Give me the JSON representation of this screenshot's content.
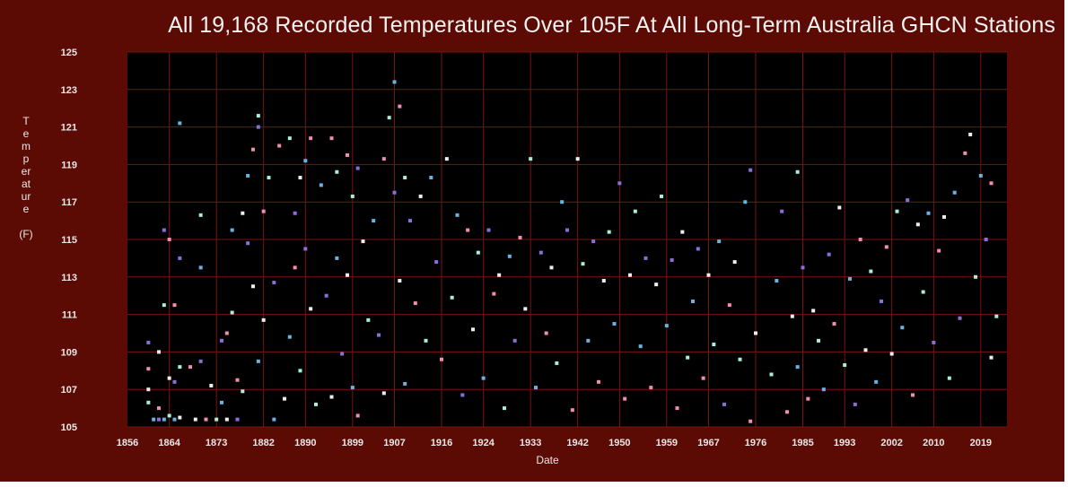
{
  "chart_data": {
    "type": "scatter",
    "title": "All 19,168 Recorded Temperatures Over 105F At All Long-Term Australia GHCN Stations",
    "xlabel": "Date",
    "ylabel": "Temperature",
    "ylabel_unit": "(F)",
    "xlim": [
      1856,
      2024
    ],
    "ylim": [
      105,
      125
    ],
    "x_ticks": [
      "1856",
      "1864",
      "1873",
      "1882",
      "1890",
      "1899",
      "1907",
      "1916",
      "1924",
      "1933",
      "1942",
      "1950",
      "1959",
      "1967",
      "1976",
      "1985",
      "1993",
      "2002",
      "2010",
      "2019"
    ],
    "x_tick_values": [
      1856,
      1864,
      1873,
      1882,
      1890,
      1899,
      1907,
      1916,
      1924,
      1933,
      1942,
      1950,
      1959,
      1967,
      1976,
      1985,
      1993,
      2002,
      2010,
      2019
    ],
    "y_ticks": [
      105,
      107,
      109,
      111,
      113,
      115,
      117,
      119,
      121,
      123,
      125
    ],
    "grid": true,
    "point_colors": [
      "#8c6ed8",
      "#f28cb4",
      "#eeeeee",
      "#a8f0d8",
      "#6bb2e0"
    ],
    "series": [
      {
        "values": [
          [
            1860,
            109.5
          ],
          [
            1860,
            108.1
          ],
          [
            1860,
            107.0
          ],
          [
            1860,
            106.3
          ],
          [
            1861,
            105.4
          ],
          [
            1862,
            105.4
          ],
          [
            1862,
            106.0
          ],
          [
            1862,
            109.0
          ],
          [
            1863,
            111.5
          ],
          [
            1863,
            105.4
          ],
          [
            1863,
            115.5
          ],
          [
            1864,
            115.0
          ],
          [
            1864,
            107.6
          ],
          [
            1864,
            105.6
          ],
          [
            1865,
            105.4
          ],
          [
            1865,
            107.4
          ],
          [
            1865,
            111.5
          ],
          [
            1866,
            105.5
          ],
          [
            1866,
            108.2
          ],
          [
            1866,
            121.2
          ],
          [
            1866,
            114.0
          ],
          [
            1868,
            108.2
          ],
          [
            1869,
            105.4
          ],
          [
            1870,
            116.3
          ],
          [
            1870,
            113.5
          ],
          [
            1870,
            108.5
          ],
          [
            1871,
            105.4
          ],
          [
            1872,
            107.2
          ],
          [
            1873,
            105.4
          ],
          [
            1874,
            106.3
          ],
          [
            1874,
            109.6
          ],
          [
            1875,
            110.0
          ],
          [
            1875,
            105.4
          ],
          [
            1876,
            111.1
          ],
          [
            1876,
            115.5
          ],
          [
            1877,
            105.4
          ],
          [
            1877,
            107.5
          ],
          [
            1878,
            116.4
          ],
          [
            1878,
            106.9
          ],
          [
            1879,
            118.4
          ],
          [
            1879,
            114.8
          ],
          [
            1880,
            119.8
          ],
          [
            1880,
            112.5
          ],
          [
            1881,
            121.6
          ],
          [
            1881,
            108.5
          ],
          [
            1881,
            121.0
          ],
          [
            1882,
            116.5
          ],
          [
            1882,
            110.7
          ],
          [
            1883,
            118.3
          ],
          [
            1884,
            105.4
          ],
          [
            1884,
            112.7
          ],
          [
            1885,
            120.0
          ],
          [
            1886,
            106.5
          ],
          [
            1887,
            120.4
          ],
          [
            1887,
            109.8
          ],
          [
            1888,
            116.4
          ],
          [
            1888,
            113.5
          ],
          [
            1889,
            118.3
          ],
          [
            1889,
            108.0
          ],
          [
            1890,
            119.2
          ],
          [
            1890,
            114.5
          ],
          [
            1891,
            120.4
          ],
          [
            1891,
            111.3
          ],
          [
            1892,
            106.2
          ],
          [
            1893,
            117.9
          ],
          [
            1894,
            112.0
          ],
          [
            1895,
            120.4
          ],
          [
            1895,
            106.6
          ],
          [
            1896,
            118.6
          ],
          [
            1896,
            114.0
          ],
          [
            1897,
            108.9
          ],
          [
            1898,
            119.5
          ],
          [
            1898,
            113.1
          ],
          [
            1899,
            117.3
          ],
          [
            1899,
            107.1
          ],
          [
            1900,
            118.8
          ],
          [
            1900,
            105.6
          ],
          [
            1901,
            114.9
          ],
          [
            1902,
            110.7
          ],
          [
            1903,
            116.0
          ],
          [
            1904,
            109.9
          ],
          [
            1905,
            119.3
          ],
          [
            1905,
            106.8
          ],
          [
            1906,
            121.5
          ],
          [
            1907,
            123.4
          ],
          [
            1907,
            117.5
          ],
          [
            1908,
            122.1
          ],
          [
            1908,
            112.8
          ],
          [
            1909,
            118.3
          ],
          [
            1909,
            107.3
          ],
          [
            1910,
            116.0
          ],
          [
            1911,
            111.6
          ],
          [
            1912,
            117.3
          ],
          [
            1913,
            109.6
          ],
          [
            1914,
            118.3
          ],
          [
            1915,
            113.8
          ],
          [
            1916,
            108.6
          ],
          [
            1917,
            119.3
          ],
          [
            1918,
            111.9
          ],
          [
            1919,
            116.3
          ],
          [
            1920,
            106.7
          ],
          [
            1921,
            115.5
          ],
          [
            1922,
            110.2
          ],
          [
            1923,
            114.3
          ],
          [
            1924,
            107.6
          ],
          [
            1925,
            115.5
          ],
          [
            1926,
            112.1
          ],
          [
            1927,
            113.1
          ],
          [
            1928,
            106.0
          ],
          [
            1929,
            114.1
          ],
          [
            1930,
            109.6
          ],
          [
            1931,
            115.1
          ],
          [
            1932,
            111.3
          ],
          [
            1933,
            119.3
          ],
          [
            1934,
            107.1
          ],
          [
            1935,
            114.3
          ],
          [
            1936,
            110.0
          ],
          [
            1937,
            113.5
          ],
          [
            1938,
            108.4
          ],
          [
            1939,
            117.0
          ],
          [
            1940,
            115.5
          ],
          [
            1941,
            105.9
          ],
          [
            1942,
            119.3
          ],
          [
            1943,
            113.7
          ],
          [
            1944,
            109.6
          ],
          [
            1945,
            114.9
          ],
          [
            1946,
            107.4
          ],
          [
            1947,
            112.8
          ],
          [
            1948,
            115.4
          ],
          [
            1949,
            110.5
          ],
          [
            1950,
            118.0
          ],
          [
            1951,
            106.5
          ],
          [
            1952,
            113.1
          ],
          [
            1953,
            116.5
          ],
          [
            1954,
            109.3
          ],
          [
            1955,
            114.0
          ],
          [
            1956,
            107.1
          ],
          [
            1957,
            112.6
          ],
          [
            1958,
            117.3
          ],
          [
            1959,
            110.4
          ],
          [
            1960,
            113.9
          ],
          [
            1961,
            106.0
          ],
          [
            1962,
            115.4
          ],
          [
            1963,
            108.7
          ],
          [
            1964,
            111.7
          ],
          [
            1965,
            114.5
          ],
          [
            1966,
            107.6
          ],
          [
            1967,
            113.1
          ],
          [
            1968,
            109.4
          ],
          [
            1969,
            114.9
          ],
          [
            1970,
            106.2
          ],
          [
            1971,
            111.5
          ],
          [
            1972,
            113.8
          ],
          [
            1973,
            108.6
          ],
          [
            1974,
            117.0
          ],
          [
            1975,
            118.7
          ],
          [
            1975,
            105.3
          ],
          [
            1976,
            110.0
          ],
          [
            1979,
            107.8
          ],
          [
            1980,
            112.8
          ],
          [
            1981,
            116.5
          ],
          [
            1982,
            105.8
          ],
          [
            1983,
            110.9
          ],
          [
            1984,
            118.6
          ],
          [
            1984,
            108.2
          ],
          [
            1985,
            113.5
          ],
          [
            1986,
            106.5
          ],
          [
            1987,
            111.2
          ],
          [
            1988,
            109.6
          ],
          [
            1989,
            107.0
          ],
          [
            1990,
            114.2
          ],
          [
            1991,
            110.5
          ],
          [
            1992,
            116.7
          ],
          [
            1993,
            108.3
          ],
          [
            1994,
            112.9
          ],
          [
            1995,
            106.2
          ],
          [
            1996,
            115.0
          ],
          [
            1997,
            109.1
          ],
          [
            1998,
            113.3
          ],
          [
            1999,
            107.4
          ],
          [
            2000,
            111.7
          ],
          [
            2001,
            114.6
          ],
          [
            2002,
            108.9
          ],
          [
            2003,
            116.5
          ],
          [
            2004,
            110.3
          ],
          [
            2005,
            117.1
          ],
          [
            2006,
            106.7
          ],
          [
            2007,
            115.8
          ],
          [
            2008,
            112.2
          ],
          [
            2009,
            116.4
          ],
          [
            2010,
            109.5
          ],
          [
            2011,
            114.4
          ],
          [
            2012,
            116.2
          ],
          [
            2013,
            107.6
          ],
          [
            2014,
            117.5
          ],
          [
            2015,
            110.8
          ],
          [
            2016,
            119.6
          ],
          [
            2017,
            120.6
          ],
          [
            2018,
            113.0
          ],
          [
            2019,
            118.4
          ],
          [
            2020,
            115.0
          ],
          [
            2021,
            118.0
          ],
          [
            2021,
            108.7
          ],
          [
            2022,
            110.9
          ]
        ]
      }
    ],
    "density_note_free": true
  }
}
